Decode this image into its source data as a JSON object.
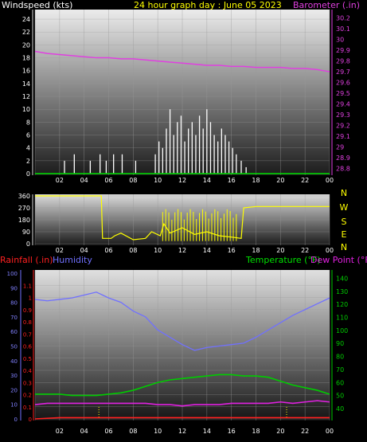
{
  "header": {
    "left_title": "Windspeed (kts)",
    "center_title": "24 hour graph day : June 05 2023",
    "right_title": "Barometer (.in)"
  },
  "bottom_header": {
    "rainfall": "Rainfall (.in)",
    "humidity": "Humidity",
    "temperature": "Temperature (°F)",
    "dewpoint": "Dew Point (°F)"
  },
  "colors": {
    "wind": "#ffffff",
    "gust_avg": "#00e000",
    "barometer": "#e040e0",
    "direction": "#ffff00",
    "rain": "#ff2020",
    "humidity": "#7070ff",
    "temperature": "#00cc00",
    "dewpoint": "#e020e0"
  },
  "time_labels": [
    "02",
    "04",
    "06",
    "08",
    "10",
    "12",
    "14",
    "16",
    "18",
    "20",
    "22",
    "00"
  ],
  "chart_data": [
    {
      "type": "line",
      "title": "Windspeed (kts)",
      "ylabel": "Windspeed (kts)",
      "ylim": [
        0,
        25
      ],
      "yticks": [
        0,
        2,
        4,
        6,
        8,
        10,
        12,
        14,
        16,
        18,
        20,
        22,
        24
      ],
      "x_hours_range": [
        0,
        24
      ],
      "series": [
        {
          "name": "Windspeed",
          "x": [
            2.4,
            3.2,
            4.5,
            5.3,
            5.8,
            6.4,
            7.1,
            8.2,
            9.8,
            10.1,
            10.4,
            10.7,
            11.0,
            11.3,
            11.6,
            11.9,
            12.2,
            12.5,
            12.8,
            13.1,
            13.4,
            13.7,
            14.0,
            14.3,
            14.6,
            14.9,
            15.2,
            15.5,
            15.8,
            16.1,
            16.4,
            16.8,
            17.2
          ],
          "y": [
            2,
            3,
            2,
            3,
            2,
            3,
            3,
            2,
            3,
            5,
            4,
            7,
            10,
            6,
            8,
            9,
            5,
            7,
            8,
            6,
            9,
            7,
            10,
            8,
            6,
            5,
            7,
            6,
            5,
            4,
            3,
            2,
            1
          ]
        }
      ]
    },
    {
      "type": "line",
      "title": "Barometer (.in)",
      "ylabel": "Barometer (.in)",
      "ylim": [
        28.75,
        30.25
      ],
      "yticks": [
        28.8,
        28.9,
        29,
        29.1,
        29.2,
        29.3,
        29.4,
        29.5,
        29.6,
        29.7,
        29.8,
        29.9,
        30,
        30.1,
        30.2
      ],
      "series": [
        {
          "name": "Barometer",
          "x": [
            0,
            1,
            2,
            3,
            4,
            5,
            6,
            7,
            8,
            9,
            10,
            11,
            12,
            13,
            14,
            15,
            16,
            17,
            18,
            19,
            20,
            21,
            22,
            23,
            24
          ],
          "y": [
            29.89,
            29.87,
            29.86,
            29.85,
            29.84,
            29.83,
            29.83,
            29.82,
            29.82,
            29.81,
            29.8,
            29.79,
            29.78,
            29.77,
            29.76,
            29.76,
            29.75,
            29.75,
            29.74,
            29.74,
            29.74,
            29.73,
            29.73,
            29.72,
            29.7
          ]
        }
      ]
    },
    {
      "type": "line",
      "title": "Wind Direction",
      "ylim": [
        0,
        360
      ],
      "yticks": [
        0,
        90,
        180,
        270,
        360
      ],
      "compass_labels": [
        "N",
        "W",
        "S",
        "E",
        "N"
      ],
      "series": [
        {
          "name": "Direction",
          "x": [
            0,
            5.4,
            5.5,
            6.2,
            6.5,
            7.0,
            8.0,
            9.0,
            9.5,
            10.2,
            10.5,
            11.0,
            12.0,
            13.0,
            14.0,
            15.0,
            16.0,
            16.8,
            17.0,
            18.0,
            24.0
          ],
          "y": [
            360,
            360,
            40,
            40,
            60,
            80,
            30,
            40,
            90,
            60,
            150,
            80,
            120,
            70,
            90,
            60,
            50,
            40,
            270,
            280,
            280
          ]
        }
      ]
    },
    {
      "type": "line",
      "title": "Rainfall / Humidity / Temperature / Dew Point",
      "rain_ylim": [
        0,
        1.2
      ],
      "rain_ticks": [
        0,
        0.1,
        0.2,
        0.3,
        0.4,
        0.5,
        0.6,
        0.7,
        0.8,
        0.9,
        1,
        1.1
      ],
      "humidity_ylim": [
        0,
        100
      ],
      "humidity_ticks": [
        0,
        10,
        20,
        30,
        40,
        50,
        60,
        70,
        80,
        90,
        100
      ],
      "temp_ylim": [
        32,
        144
      ],
      "temp_ticks": [
        40,
        50,
        60,
        70,
        80,
        90,
        100,
        110,
        120,
        130,
        140
      ],
      "series": [
        {
          "name": "Rainfall (.in)",
          "x": [
            0,
            2,
            4,
            6,
            8,
            10,
            12,
            14,
            16,
            18,
            20,
            22,
            24
          ],
          "y": [
            0,
            0.01,
            0.01,
            0.01,
            0.01,
            0.01,
            0.01,
            0.01,
            0.01,
            0.01,
            0.01,
            0.01,
            0.01
          ]
        },
        {
          "name": "Humidity",
          "x": [
            0,
            1,
            2,
            3,
            4,
            5,
            6,
            7,
            8,
            9,
            10,
            11,
            12,
            13,
            14,
            15,
            16,
            17,
            18,
            19,
            20,
            21,
            22,
            23,
            24
          ],
          "y": [
            82,
            81,
            82,
            83,
            85,
            87,
            83,
            80,
            74,
            70,
            61,
            56,
            51,
            47,
            49,
            50,
            51,
            52,
            56,
            61,
            66,
            71,
            75,
            79,
            83
          ]
        },
        {
          "name": "Temperature (°F)",
          "x": [
            0,
            1,
            2,
            3,
            4,
            5,
            6,
            7,
            8,
            9,
            10,
            11,
            12,
            13,
            14,
            15,
            16,
            17,
            18,
            19,
            20,
            21,
            22,
            23,
            24
          ],
          "y": [
            51,
            51,
            51,
            50,
            50,
            50,
            51,
            52,
            54,
            57,
            60,
            62,
            63,
            64,
            65,
            66,
            66,
            65,
            65,
            64,
            61,
            58,
            56,
            54,
            51
          ]
        },
        {
          "name": "Dew Point (°F)",
          "x": [
            0,
            1,
            2,
            3,
            4,
            5,
            6,
            7,
            8,
            9,
            10,
            11,
            12,
            13,
            14,
            15,
            16,
            17,
            18,
            19,
            20,
            21,
            22,
            23,
            24
          ],
          "y": [
            43,
            44,
            44,
            44,
            44,
            44,
            44,
            44,
            44,
            44,
            43,
            43,
            42,
            43,
            43,
            43,
            44,
            44,
            44,
            44,
            45,
            44,
            45,
            46,
            45
          ]
        }
      ]
    }
  ]
}
